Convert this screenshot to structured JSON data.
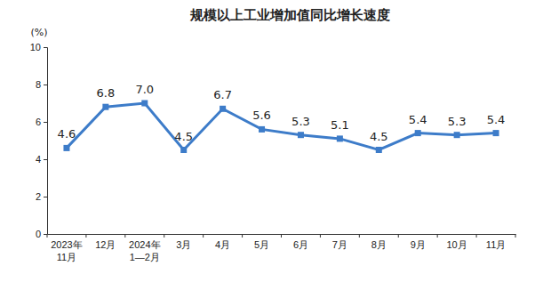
{
  "chart_data": {
    "type": "line",
    "title": "规模以上工业增加值同比增长速度",
    "ylabel": "(%)",
    "categories": [
      "2023年\n11月",
      "12月",
      "2024年\n1—2月",
      "3月",
      "4月",
      "5月",
      "6月",
      "7月",
      "8月",
      "9月",
      "10月",
      "11月"
    ],
    "values": [
      4.6,
      6.8,
      7.0,
      4.5,
      6.7,
      5.6,
      5.3,
      5.1,
      4.5,
      5.4,
      5.3,
      5.4
    ],
    "value_labels": [
      "4.6",
      "6.8",
      "7.0",
      "4.5",
      "6.7",
      "5.6",
      "5.3",
      "5.1",
      "4.5",
      "5.4",
      "5.3",
      "5.4"
    ],
    "color": "#3d7cc9",
    "marker": "square",
    "data_labels": true,
    "ylim": [
      0,
      10
    ],
    "yticks": [
      0,
      2,
      4,
      6,
      8,
      10
    ],
    "grid": false
  }
}
